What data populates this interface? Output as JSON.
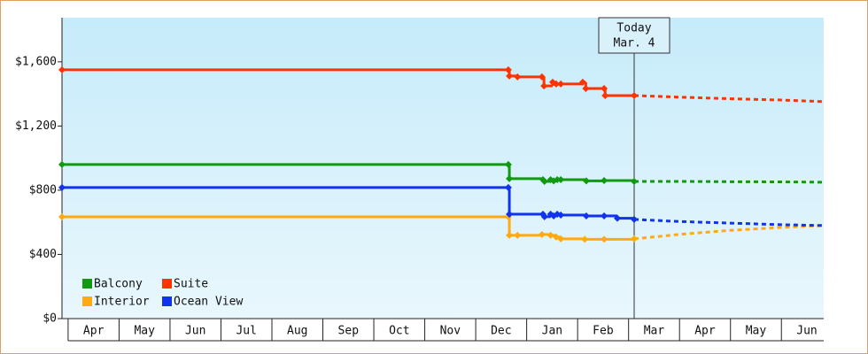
{
  "chart_data": {
    "type": "step",
    "ylim": [
      0,
      1875
    ],
    "yticks": [
      {
        "value": 0,
        "label": "$0"
      },
      {
        "value": 400,
        "label": "$400"
      },
      {
        "value": 800,
        "label": "$800"
      },
      {
        "value": 1200,
        "label": "$1,200"
      },
      {
        "value": 1600,
        "label": "$1,600"
      }
    ],
    "xlim": [
      -0.12,
      14.83
    ],
    "xticks": [
      {
        "value": 0.5,
        "label": "Apr"
      },
      {
        "value": 1.5,
        "label": "May"
      },
      {
        "value": 2.5,
        "label": "Jun"
      },
      {
        "value": 3.5,
        "label": "Jul"
      },
      {
        "value": 4.5,
        "label": "Aug"
      },
      {
        "value": 5.5,
        "label": "Sep"
      },
      {
        "value": 6.5,
        "label": "Oct"
      },
      {
        "value": 7.5,
        "label": "Nov"
      },
      {
        "value": 8.5,
        "label": "Dec"
      },
      {
        "value": 9.5,
        "label": "Jan"
      },
      {
        "value": 10.5,
        "label": "Feb"
      },
      {
        "value": 11.5,
        "label": "Mar"
      },
      {
        "value": 12.5,
        "label": "Apr"
      },
      {
        "value": 13.5,
        "label": "May"
      },
      {
        "value": 14.5,
        "label": "Jun"
      }
    ],
    "annotation": {
      "text": [
        "Today",
        "Mar. 4"
      ],
      "x": 11.11
    },
    "legend": "lower left",
    "series": [
      {
        "name": "Balcony",
        "color": "#119911",
        "x": [
          -0.12,
          8.64,
          8.66,
          9.32,
          9.35,
          9.47,
          9.53,
          9.6,
          9.67,
          10.17,
          10.52,
          11.11
        ],
        "values": [
          960,
          960,
          872,
          866,
          855,
          866,
          858,
          866,
          866,
          858,
          860,
          855
        ],
        "forecast": {
          "x": [
            11.11,
            12.0,
            13.0,
            14.0,
            14.83
          ],
          "values": [
            855,
            855,
            853,
            852,
            850
          ]
        }
      },
      {
        "name": "Suite",
        "color": "#ff3300",
        "x": [
          -0.12,
          8.64,
          8.66,
          8.82,
          9.3,
          9.34,
          9.51,
          9.58,
          9.67,
          10.1,
          10.16,
          10.52,
          10.54,
          11.11
        ],
        "values": [
          1550,
          1550,
          1512,
          1506,
          1506,
          1450,
          1473,
          1462,
          1462,
          1473,
          1434,
          1434,
          1390,
          1390
        ],
        "forecast": {
          "x": [
            11.11,
            12.0,
            13.0,
            14.0,
            14.83
          ],
          "values": [
            1390,
            1380,
            1370,
            1362,
            1352
          ]
        }
      },
      {
        "name": "Interior",
        "color": "#ffaa11",
        "x": [
          -0.12,
          8.64,
          8.66,
          8.82,
          9.3,
          9.47,
          9.58,
          9.67,
          10.14,
          10.52,
          11.11
        ],
        "values": [
          634,
          634,
          519,
          519,
          524,
          519,
          508,
          497,
          494,
          494,
          497
        ],
        "forecast": {
          "x": [
            11.11,
            12.0,
            13.0,
            14.0,
            14.83
          ],
          "values": [
            497,
            525,
            550,
            568,
            580
          ]
        }
      },
      {
        "name": "Ocean View",
        "color": "#1133ee",
        "x": [
          -0.12,
          8.64,
          8.66,
          9.32,
          9.35,
          9.47,
          9.53,
          9.6,
          9.67,
          10.17,
          10.52,
          10.78,
          11.11
        ],
        "values": [
          817,
          817,
          651,
          651,
          635,
          651,
          640,
          651,
          645,
          640,
          640,
          625,
          618
        ],
        "forecast": {
          "x": [
            11.11,
            12.0,
            13.0,
            14.0,
            14.83
          ],
          "values": [
            618,
            605,
            595,
            585,
            580
          ]
        }
      }
    ]
  }
}
